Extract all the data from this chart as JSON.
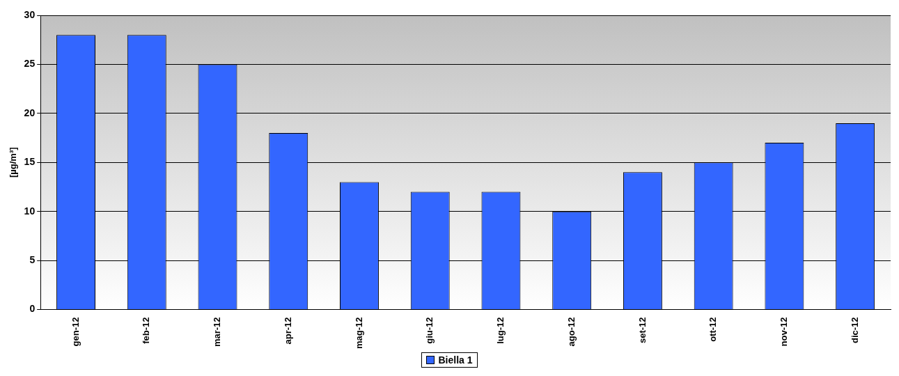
{
  "chart_data": {
    "type": "bar",
    "ylabel": "[µg/m³]",
    "categories": [
      "gen-12",
      "feb-12",
      "mar-12",
      "apr-12",
      "mag-12",
      "giu-12",
      "lug-12",
      "ago-12",
      "set-12",
      "ott-12",
      "nov-12",
      "dic-12"
    ],
    "series": [
      {
        "name": "Biella 1",
        "color": "#3366ff",
        "values": [
          28,
          28,
          25,
          18,
          13,
          12,
          12,
          10,
          14,
          15,
          17,
          19
        ]
      }
    ],
    "ylim": [
      0,
      30
    ],
    "yticks": [
      0,
      5,
      10,
      15,
      20,
      25,
      30
    ],
    "grid": "y",
    "legend": "bottom"
  }
}
